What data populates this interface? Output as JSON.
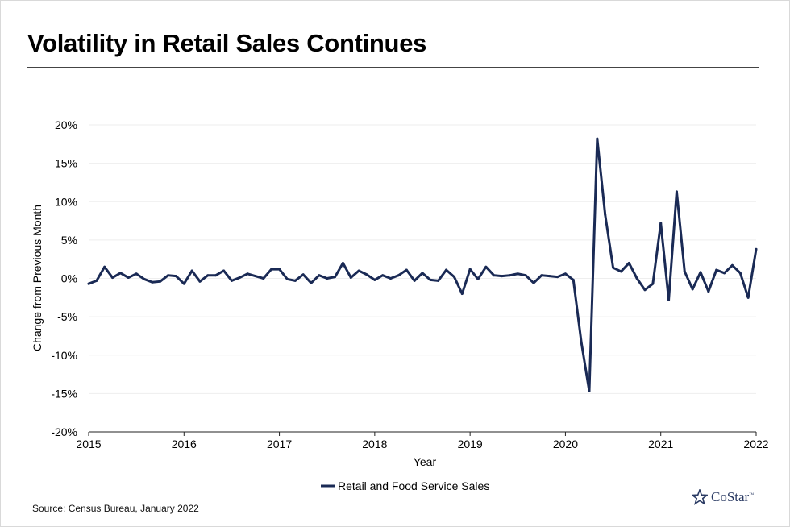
{
  "page": {
    "title": "Volatility in Retail Sales Continues",
    "source": "Source: Census Bureau, January 2022",
    "logo_text": "CoStar",
    "logo_mark": "™"
  },
  "colors": {
    "series": "#1a2a55",
    "grid": "#eeeeee",
    "logo": "#2a3a63"
  },
  "chart_data": {
    "type": "line",
    "title": "Volatility in Retail Sales Continues",
    "xlabel": "Year",
    "ylabel": "Change from Previous Month",
    "xlim": [
      2015,
      2022
    ],
    "ylim": [
      -20,
      20
    ],
    "y_ticks": [
      20,
      15,
      10,
      5,
      0,
      -5,
      -10,
      -15,
      -20
    ],
    "y_tick_labels": [
      "20%",
      "15%",
      "10%",
      "5%",
      "0%",
      "-5%",
      "-10%",
      "-15%",
      "-20%"
    ],
    "x_ticks": [
      2015,
      2016,
      2017,
      2018,
      2019,
      2020,
      2021,
      2022
    ],
    "x_tick_labels": [
      "2015",
      "2016",
      "2017",
      "2018",
      "2019",
      "2020",
      "2021",
      "2022"
    ],
    "grid": true,
    "legend_position": "bottom",
    "series": [
      {
        "name": "Retail and Food Service Sales",
        "values": [
          -0.7,
          -0.3,
          1.5,
          0.1,
          0.7,
          0.1,
          0.6,
          -0.1,
          -0.5,
          -0.4,
          0.4,
          0.3,
          -0.7,
          1.0,
          -0.4,
          0.4,
          0.4,
          1.0,
          -0.3,
          0.1,
          0.6,
          0.3,
          0.0,
          1.2,
          1.2,
          -0.1,
          -0.3,
          0.5,
          -0.6,
          0.4,
          0.0,
          0.2,
          2.0,
          0.1,
          1.0,
          0.5,
          -0.2,
          0.4,
          0.0,
          0.4,
          1.1,
          -0.3,
          0.7,
          -0.2,
          -0.3,
          1.1,
          0.2,
          -2.0,
          1.2,
          -0.1,
          1.5,
          0.4,
          0.3,
          0.4,
          0.6,
          0.4,
          -0.6,
          0.4,
          0.3,
          0.2,
          0.6,
          -0.2,
          -8.3,
          -14.7,
          18.2,
          8.3,
          1.4,
          0.9,
          2.0,
          0.0,
          -1.5,
          -0.7,
          7.2,
          -2.8,
          11.3,
          0.9,
          -1.4,
          0.8,
          -1.7,
          1.1,
          0.7,
          1.7,
          0.7,
          -2.5,
          3.8
        ]
      }
    ]
  }
}
